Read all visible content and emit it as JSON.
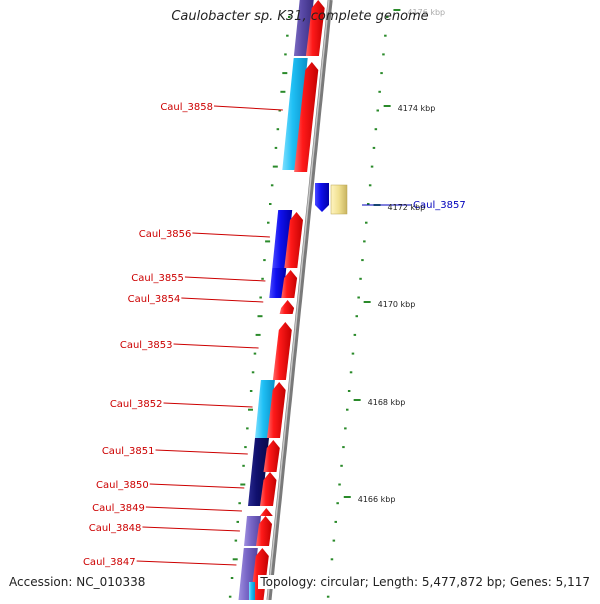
{
  "title": "Caulobacter sp. K31, complete genome",
  "accession": "Accession: NC_010338",
  "topology": "Topology: circular; Length: 5,477,872 bp; Genes: 5,117",
  "colors": {
    "forward_gene": "#e8141c",
    "reverse_blue": "#1a1ae8",
    "reverse_cyan": "#26c4f2",
    "reverse_navy": "#10106e",
    "reverse_purple": "#5a4aa8",
    "reverse_lavender": "#7a68c8",
    "yellow_gene": "#f0e090",
    "label_red": "#cc0000",
    "label_blue": "#0000bb",
    "tick_green": "#2a8a2a",
    "backbone": "#9a9a9a"
  },
  "scale_labels": [
    "4176 kbp",
    "4174 kbp",
    "4172 kbp",
    "4170 kbp",
    "4168 kbp",
    "4166 kbp"
  ],
  "gene_labels": [
    {
      "name": "Caul_3858",
      "strand": "reverse"
    },
    {
      "name": "Caul_3857",
      "strand": "forward"
    },
    {
      "name": "Caul_3856",
      "strand": "reverse"
    },
    {
      "name": "Caul_3855",
      "strand": "reverse"
    },
    {
      "name": "Caul_3854",
      "strand": "reverse"
    },
    {
      "name": "Caul_3853",
      "strand": "reverse"
    },
    {
      "name": "Caul_3852",
      "strand": "reverse"
    },
    {
      "name": "Caul_3851",
      "strand": "reverse"
    },
    {
      "name": "Caul_3850",
      "strand": "reverse"
    },
    {
      "name": "Caul_3849",
      "strand": "reverse"
    },
    {
      "name": "Caul_3848",
      "strand": "reverse"
    },
    {
      "name": "Caul_3847",
      "strand": "reverse"
    }
  ]
}
